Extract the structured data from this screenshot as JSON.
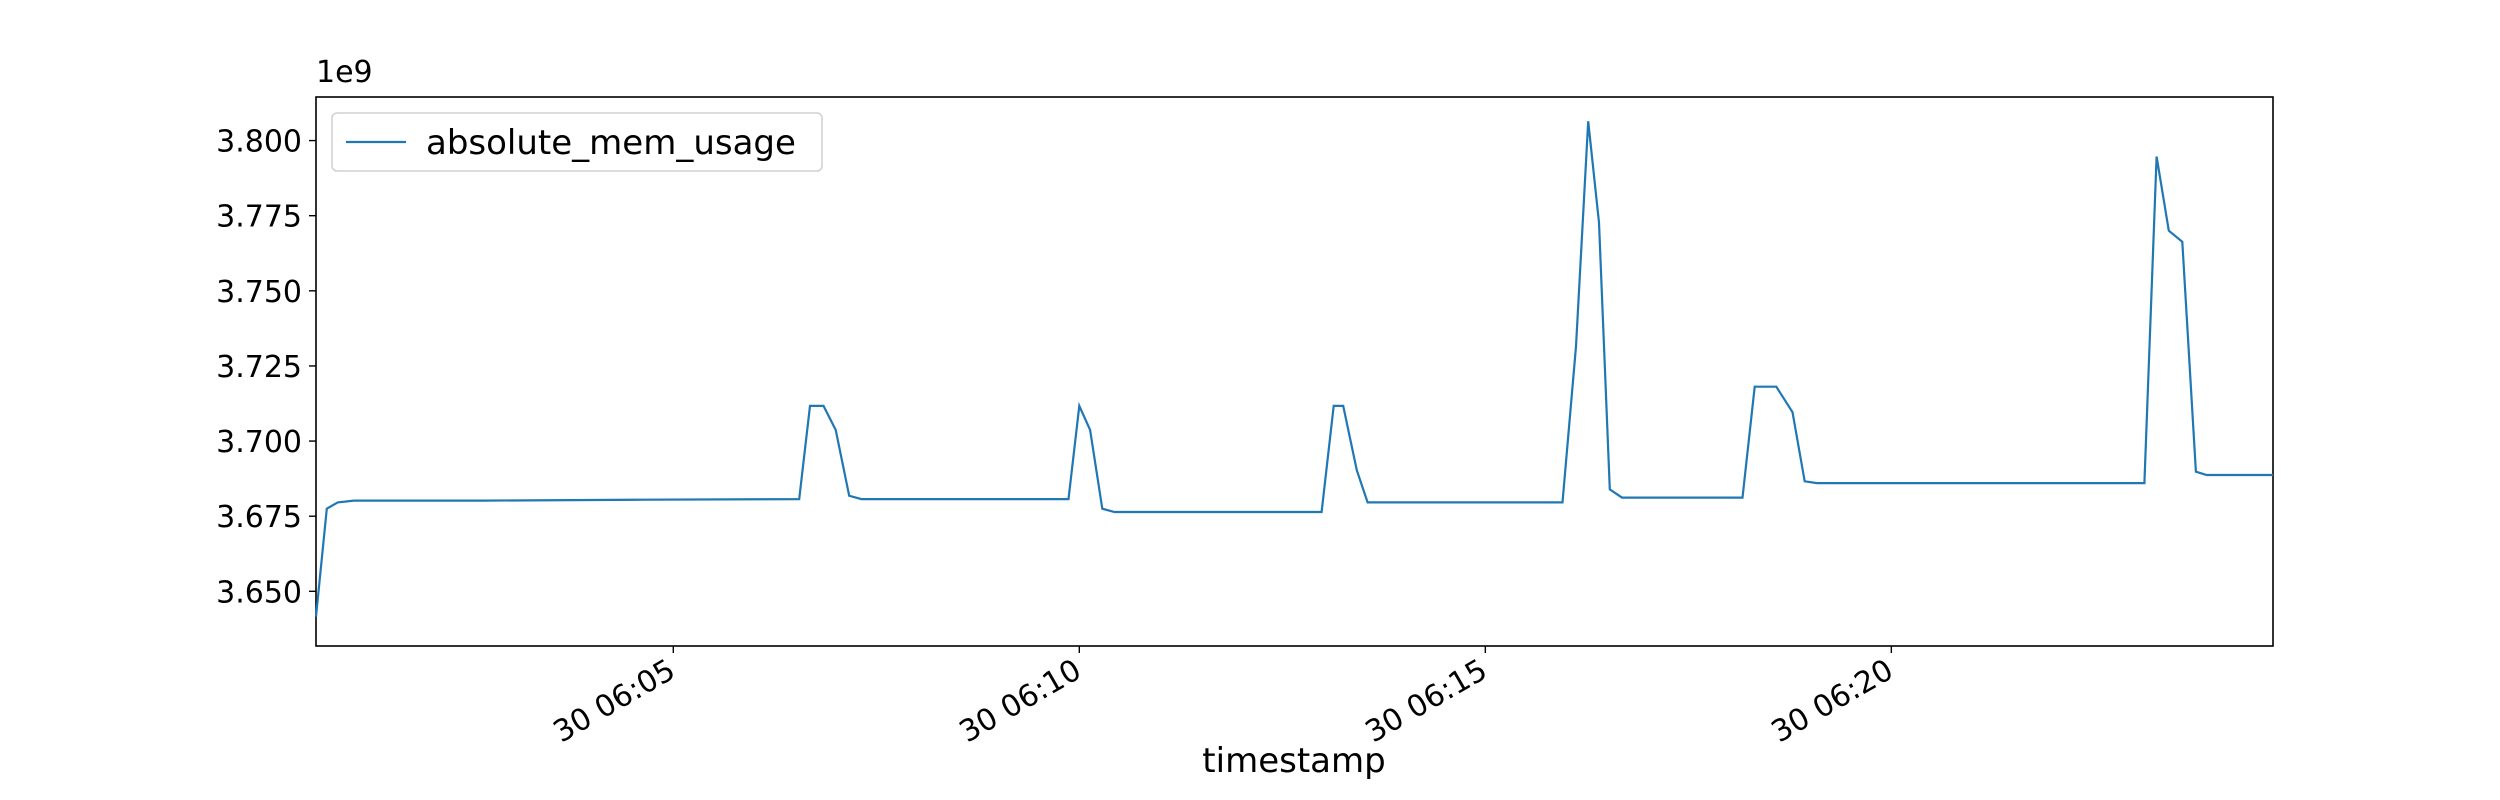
{
  "chart_data": {
    "type": "line",
    "x_label": "timestamp",
    "y_offset_label": "1e9",
    "x": [
      "30 06:00:36",
      "30 06:00:44",
      "30 06:00:52",
      "30 06:01:04",
      "30 06:02:40",
      "30 06:04:39",
      "30 06:06:33",
      "30 06:06:41",
      "30 06:06:51",
      "30 06:07:00",
      "30 06:07:10",
      "30 06:07:19",
      "30 06:08:37",
      "30 06:09:52",
      "30 06:10:00",
      "30 06:10:08",
      "30 06:10:17",
      "30 06:10:26",
      "30 06:11:35",
      "30 06:12:59",
      "30 06:13:08",
      "30 06:13:15",
      "30 06:13:25",
      "30 06:13:33",
      "30 06:13:46",
      "30 06:15:57",
      "30 06:16:07",
      "30 06:16:16",
      "30 06:16:24",
      "30 06:16:32",
      "30 06:16:41",
      "30 06:16:51",
      "30 06:18:10",
      "30 06:18:19",
      "30 06:18:35",
      "30 06:18:47",
      "30 06:18:56",
      "30 06:19:05",
      "30 06:23:07",
      "30 06:23:16",
      "30 06:23:25",
      "30 06:23:35",
      "30 06:23:45",
      "30 06:23:53",
      "30 06:24:42"
    ],
    "series": [
      {
        "name": "absolute_mem_usage",
        "color": "#1f77b4",
        "values": [
          3.6416,
          3.6775,
          3.6796,
          3.6802,
          3.6802,
          3.6805,
          3.6807,
          3.7117,
          3.7117,
          3.7037,
          3.6818,
          3.6807,
          3.6807,
          3.6807,
          3.7117,
          3.7037,
          3.6775,
          3.6764,
          3.6764,
          3.6764,
          3.7117,
          3.7117,
          3.6903,
          3.6796,
          3.6796,
          3.6796,
          3.7315,
          3.8064,
          3.7727,
          3.6839,
          3.6812,
          3.6812,
          3.6812,
          3.7181,
          3.7181,
          3.7096,
          3.6866,
          3.686,
          3.686,
          3.7947,
          3.77,
          3.7663,
          3.6898,
          3.6887,
          3.6887
        ]
      }
    ],
    "xlim": [
      "30 06:00:36",
      "30 06:24:42"
    ],
    "xticks": [
      "30 06:05",
      "30 06:10",
      "30 06:15",
      "30 06:20"
    ],
    "ylim": [
      3.6318,
      3.8145
    ],
    "yticks": [
      {
        "value": 3.65,
        "label": "3.650"
      },
      {
        "value": 3.675,
        "label": "3.675"
      },
      {
        "value": 3.7,
        "label": "3.700"
      },
      {
        "value": 3.725,
        "label": "3.725"
      },
      {
        "value": 3.75,
        "label": "3.750"
      },
      {
        "value": 3.775,
        "label": "3.775"
      },
      {
        "value": 3.8,
        "label": "3.800"
      }
    ],
    "grid": false,
    "legend": "upper left"
  }
}
